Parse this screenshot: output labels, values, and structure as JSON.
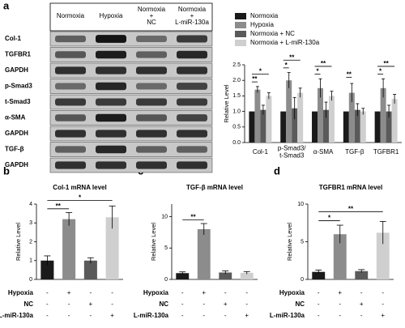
{
  "panel_labels": [
    "a",
    "b",
    "c",
    "d"
  ],
  "blot": {
    "lanes": [
      "Normoxia",
      "Hypoxia",
      "Normoxia + NC",
      "Normoxia + L-miR-130a"
    ],
    "rows": [
      "Col-1",
      "TGFBR1",
      "GAPDH",
      "p-Smad3",
      "t-Smad3",
      "α-SMA",
      "GAPDH",
      "TGF-β",
      "GAPDH"
    ]
  },
  "treatments": [
    {
      "label": "Hypoxia",
      "signs": [
        "-",
        "+",
        "-",
        "-"
      ]
    },
    {
      "label": "NC",
      "signs": [
        "-",
        "-",
        "+",
        "-"
      ]
    },
    {
      "label": "L-miR-130a",
      "signs": [
        "-",
        "-",
        "-",
        "+"
      ]
    }
  ],
  "chart_data": [
    {
      "type": "grouped-bar",
      "y_label": "Relative Level",
      "categories": [
        "Col-1",
        "p-Smad3/t-Smad3",
        "α-SMA",
        "TGF-β",
        "TGFBR1"
      ],
      "series": [
        {
          "name": "Normoxia",
          "color": "#1a1a1a",
          "values": [
            1,
            1,
            1,
            1,
            1
          ],
          "errors": [
            0,
            0,
            0,
            0,
            0
          ]
        },
        {
          "name": "Hypoxia",
          "color": "#8c8c8c",
          "values": [
            1.7,
            2.0,
            1.75,
            1.6,
            1.75
          ],
          "errors": [
            0.1,
            0.25,
            0.3,
            0.3,
            0.3
          ]
        },
        {
          "name": "Normoxia + NC",
          "color": "#5a5a5a",
          "values": [
            1.05,
            1.1,
            1.05,
            1.05,
            1.0
          ],
          "errors": [
            0.15,
            0.35,
            0.25,
            0.2,
            0.2
          ]
        },
        {
          "name": "Normoxia + L-miR-130a",
          "color": "#cfcfcf",
          "values": [
            1.5,
            1.6,
            1.5,
            1.0,
            1.4
          ],
          "errors": [
            0.1,
            0.15,
            0.15,
            0.1,
            0.15
          ]
        }
      ],
      "ylim": [
        0,
        2.5
      ],
      "yticks": [
        {
          "value": 0,
          "label": "0.0"
        },
        0.5,
        {
          "value": 1,
          "label": "1.0"
        },
        1.5,
        {
          "value": 2,
          "label": "2.0"
        },
        2.5
      ],
      "annotations": [
        "**",
        "*",
        "*",
        "**",
        "*",
        "**",
        "**",
        "*",
        "**"
      ],
      "legend": "top"
    },
    {
      "type": "bar",
      "title": "Col-1 mRNA level",
      "y_label": "Relative Level",
      "colors": [
        "#1a1a1a",
        "#8c8c8c",
        "#5a5a5a",
        "#cfcfcf"
      ],
      "values": [
        1,
        3.2,
        1.0,
        3.3
      ],
      "errors": [
        0.25,
        0.35,
        0.15,
        0.6
      ],
      "ylim": [
        0,
        4
      ],
      "yticks": [
        0,
        1,
        2,
        3,
        4
      ],
      "annotations": [
        "**",
        "*"
      ]
    },
    {
      "type": "bar",
      "title": "TGF-β mRNA level",
      "y_label": "Relative Level",
      "colors": [
        "#1a1a1a",
        "#8c8c8c",
        "#5a5a5a",
        "#cfcfcf"
      ],
      "values": [
        1,
        8,
        1.1,
        1.05
      ],
      "errors": [
        0.2,
        0.9,
        0.25,
        0.2
      ],
      "ylim": [
        0,
        12
      ],
      "yticks": [
        0,
        5,
        10
      ],
      "annotations": [
        "**"
      ]
    },
    {
      "type": "bar",
      "title": "TGFBR1 mRNA level",
      "y_label": "Relative Level",
      "colors": [
        "#1a1a1a",
        "#8c8c8c",
        "#5a5a5a",
        "#cfcfcf"
      ],
      "values": [
        1,
        6,
        1.1,
        6.2
      ],
      "errors": [
        0.25,
        1.2,
        0.2,
        1.5
      ],
      "ylim": [
        0,
        10
      ],
      "yticks": [
        0,
        5,
        10
      ],
      "annotations": [
        "*",
        "**"
      ]
    }
  ]
}
